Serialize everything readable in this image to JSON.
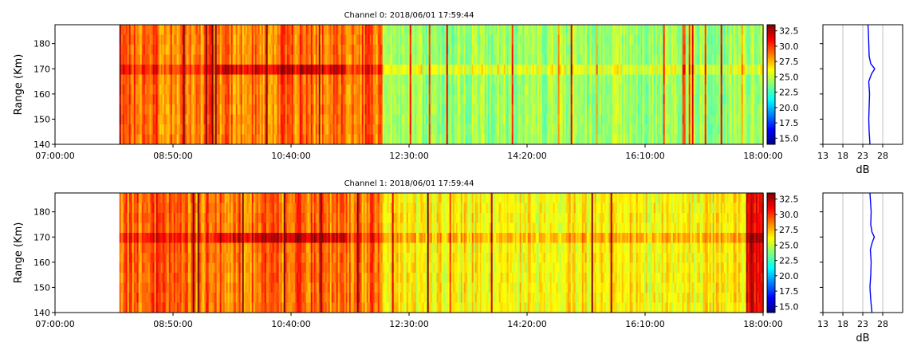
{
  "chart_data": [
    {
      "type": "heatmap",
      "title": "Channel 0: 2018/06/01 17:59:44",
      "ylabel": "Range (Km)",
      "xlabel": "",
      "xlim": [
        "07:00:00",
        "18:00:00"
      ],
      "ylim": [
        140,
        187.5
      ],
      "x_ticks": [
        "07:00:00",
        "08:50:00",
        "10:40:00",
        "12:30:00",
        "14:20:00",
        "16:10:00",
        "18:00:00"
      ],
      "y_ticks": [
        140,
        150,
        160,
        170,
        180
      ],
      "data_start": "08:00:00",
      "colorbar": {
        "colormap": "jet",
        "range": [
          14,
          33.5
        ],
        "ticks": [
          "15.0",
          "17.5",
          "20.0",
          "22.5",
          "25.0",
          "27.5",
          "30.0",
          "32.5"
        ]
      },
      "profile": {
        "xlabel": "dB",
        "xlim": [
          13,
          33
        ],
        "x_ticks": [
          13,
          18,
          23,
          28
        ],
        "grid": true,
        "range_km": [
          140,
          145,
          150,
          155,
          160,
          165,
          168,
          170,
          172,
          175,
          180,
          185,
          187.5
        ],
        "db": [
          24.8,
          24.6,
          24.5,
          24.6,
          24.7,
          24.5,
          25.2,
          26.0,
          25.0,
          24.6,
          24.5,
          24.4,
          24.3
        ]
      }
    },
    {
      "type": "heatmap",
      "title": "Channel 1: 2018/06/01 17:59:44",
      "ylabel": "Range (Km)",
      "xlabel": "",
      "xlim": [
        "07:00:00",
        "18:00:00"
      ],
      "ylim": [
        140,
        187.5
      ],
      "x_ticks": [
        "07:00:00",
        "08:50:00",
        "10:40:00",
        "12:30:00",
        "14:20:00",
        "16:10:00",
        "18:00:00"
      ],
      "y_ticks": [
        140,
        150,
        160,
        170,
        180
      ],
      "data_start": "08:00:00",
      "colorbar": {
        "colormap": "jet",
        "range": [
          14,
          33.5
        ],
        "ticks": [
          "15.0",
          "17.5",
          "20.0",
          "22.5",
          "25.0",
          "27.5",
          "30.0",
          "32.5"
        ]
      },
      "profile": {
        "xlabel": "dB",
        "xlim": [
          13,
          33
        ],
        "x_ticks": [
          13,
          18,
          23,
          28
        ],
        "grid": true,
        "range_km": [
          140,
          145,
          150,
          155,
          160,
          165,
          168,
          170,
          172,
          175,
          180,
          185,
          187.5
        ],
        "db": [
          25.3,
          25.0,
          24.8,
          25.0,
          25.1,
          24.9,
          25.4,
          25.9,
          25.3,
          25.0,
          25.1,
          24.9,
          24.8
        ]
      }
    }
  ]
}
